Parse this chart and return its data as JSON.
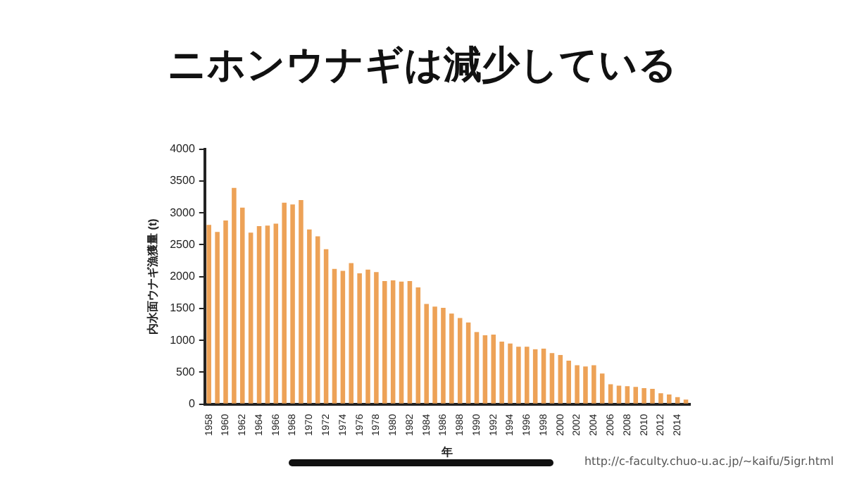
{
  "chart_data": {
    "type": "bar",
    "title": "ニホンウナギは減少している",
    "xlabel": "年",
    "ylabel": "内水面ウナギ漁獲量 (t)",
    "categories": [
      "1958",
      null,
      "1960",
      null,
      "1962",
      null,
      "1964",
      null,
      "1966",
      null,
      "1968",
      null,
      "1970",
      null,
      "1972",
      null,
      "1974",
      null,
      "1976",
      null,
      "1978",
      null,
      "1980",
      null,
      "1982",
      null,
      "1984",
      null,
      "1986",
      null,
      "1988",
      null,
      "1990",
      null,
      "1992",
      null,
      "1994",
      null,
      "1996",
      null,
      "1998",
      null,
      "2000",
      null,
      "2002",
      null,
      "2004",
      null,
      "2006",
      null,
      "2008",
      null,
      "2010",
      null,
      "2012",
      null,
      "2014",
      null
    ],
    "values": [
      2810,
      2700,
      2880,
      3390,
      3080,
      2690,
      2790,
      2800,
      2830,
      3160,
      3130,
      3200,
      2740,
      2630,
      2430,
      2120,
      2090,
      2210,
      2050,
      2110,
      2070,
      1930,
      1940,
      1920,
      1930,
      1830,
      1570,
      1530,
      1510,
      1420,
      1350,
      1280,
      1130,
      1080,
      1090,
      980,
      950,
      900,
      900,
      860,
      870,
      800,
      770,
      680,
      610,
      590,
      610,
      480,
      310,
      290,
      280,
      270,
      250,
      240,
      170,
      150,
      110,
      70
    ],
    "color": "#eda257",
    "ylim": [
      0,
      4000
    ],
    "yticks": [
      0,
      500,
      1000,
      1500,
      2000,
      2500,
      3000,
      3500,
      4000
    ],
    "grid": false,
    "legend": false,
    "annotations": [
      "http://c-faculty.chuo-u.ac.jp/~kaifu/5igr.html"
    ]
  }
}
